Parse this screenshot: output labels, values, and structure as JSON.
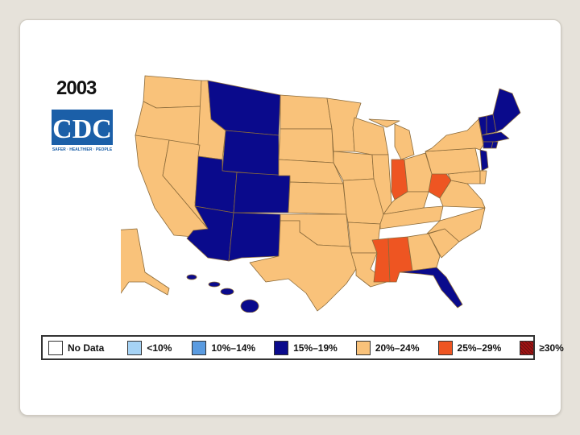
{
  "title": "2003",
  "logo": {
    "text": "CDC",
    "tagline": "SAFER · HEALTHIER · PEOPLE"
  },
  "colors": {
    "c1519": "#0a0a8c",
    "c2024": "#f9c27a",
    "c2529": "#ee5522",
    "c30": "#a31515",
    "c1014": "#5a9be0",
    "clt10": "#a6d3f5",
    "nodata": "#ffffff",
    "border": "#8a6a3a"
  },
  "legend": [
    {
      "label": "No Data",
      "color": "#ffffff"
    },
    {
      "label": "<10%",
      "color": "#a6d3f5"
    },
    {
      "label": "10%–14%",
      "color": "#5a9be0"
    },
    {
      "label": "15%–19%",
      "color": "#0a0a8c"
    },
    {
      "label": "20%–24%",
      "color": "#f9c27a"
    },
    {
      "label": "25%–29%",
      "color": "#ee5522"
    },
    {
      "label": "≥30%",
      "color": "#a31515"
    }
  ],
  "states_15_19": [
    "MT",
    "WY",
    "UT",
    "CO",
    "AZ",
    "NM",
    "CT",
    "VT",
    "NH",
    "ME",
    "MA",
    "RI",
    "NJ",
    "FL",
    "HI"
  ],
  "states_25_29": [
    "IN",
    "WV",
    "MS",
    "AL"
  ],
  "states_20_24": [
    "WA",
    "OR",
    "CA",
    "NV",
    "ID",
    "ND",
    "SD",
    "NE",
    "KS",
    "OK",
    "TX",
    "MN",
    "IA",
    "MO",
    "AR",
    "LA",
    "WI",
    "IL",
    "MI",
    "OH",
    "KY",
    "TN",
    "GA",
    "SC",
    "NC",
    "VA",
    "PA",
    "NY",
    "MD",
    "DE",
    "AK"
  ]
}
